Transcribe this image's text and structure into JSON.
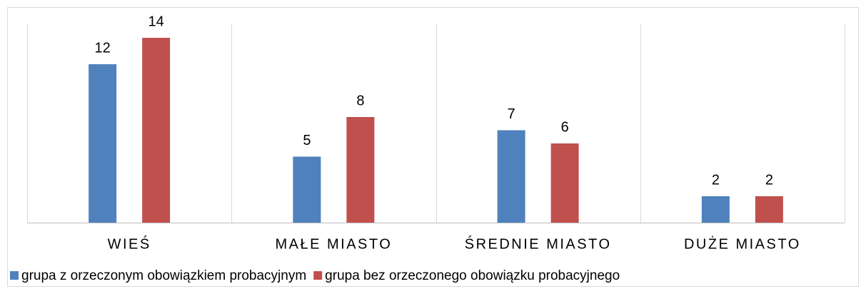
{
  "chart_data": {
    "type": "bar",
    "categories": [
      "WIEŚ",
      "MAŁE MIASTO",
      "ŚREDNIE MIASTO",
      "DUŻE MIASTO"
    ],
    "series": [
      {
        "name": "grupa z orzeczonym obowiązkiem probacyjnym",
        "color": "#4f81bd",
        "values": [
          12,
          5,
          7,
          2
        ]
      },
      {
        "name": "grupa bez orzeczonego obowiązku probacyjnego",
        "color": "#c0504d",
        "values": [
          14,
          8,
          6,
          2
        ]
      }
    ],
    "ylim": [
      0,
      15
    ]
  }
}
